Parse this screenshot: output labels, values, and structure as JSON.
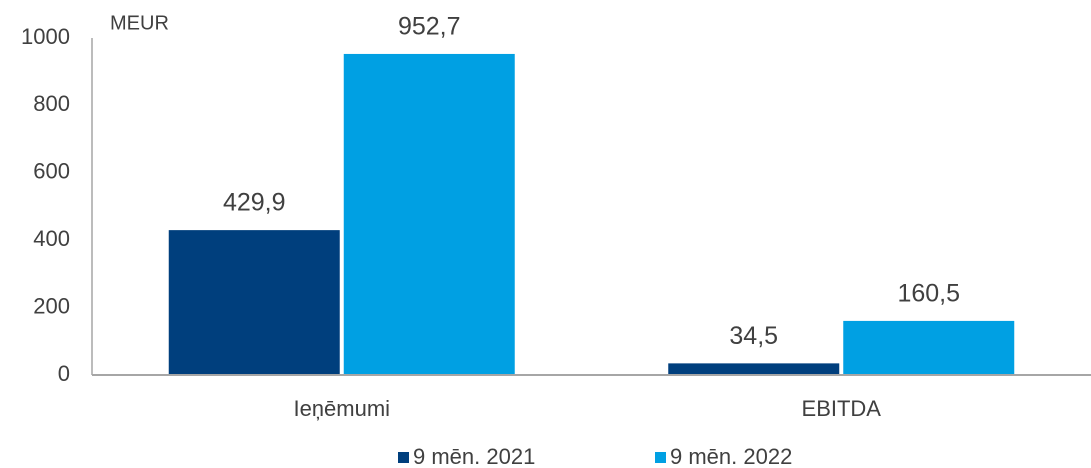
{
  "chart_data": {
    "type": "bar",
    "y_label": "MEUR",
    "categories": [
      "Ieņēmumi",
      "EBITDA"
    ],
    "series": [
      {
        "name": "9 mēn. 2021",
        "color": "#003f7d",
        "values": [
          429.9,
          34.5
        ],
        "value_labels": [
          "429,9",
          "34,5"
        ]
      },
      {
        "name": "9 mēn. 2022",
        "color": "#00a0e3",
        "values": [
          952.7,
          160.5
        ],
        "value_labels": [
          "952,7",
          "160,5"
        ]
      }
    ],
    "ylim": [
      0,
      1000
    ],
    "yticks": [
      0,
      200,
      400,
      600,
      800,
      1000
    ],
    "grid": false,
    "legend": "bottom"
  }
}
